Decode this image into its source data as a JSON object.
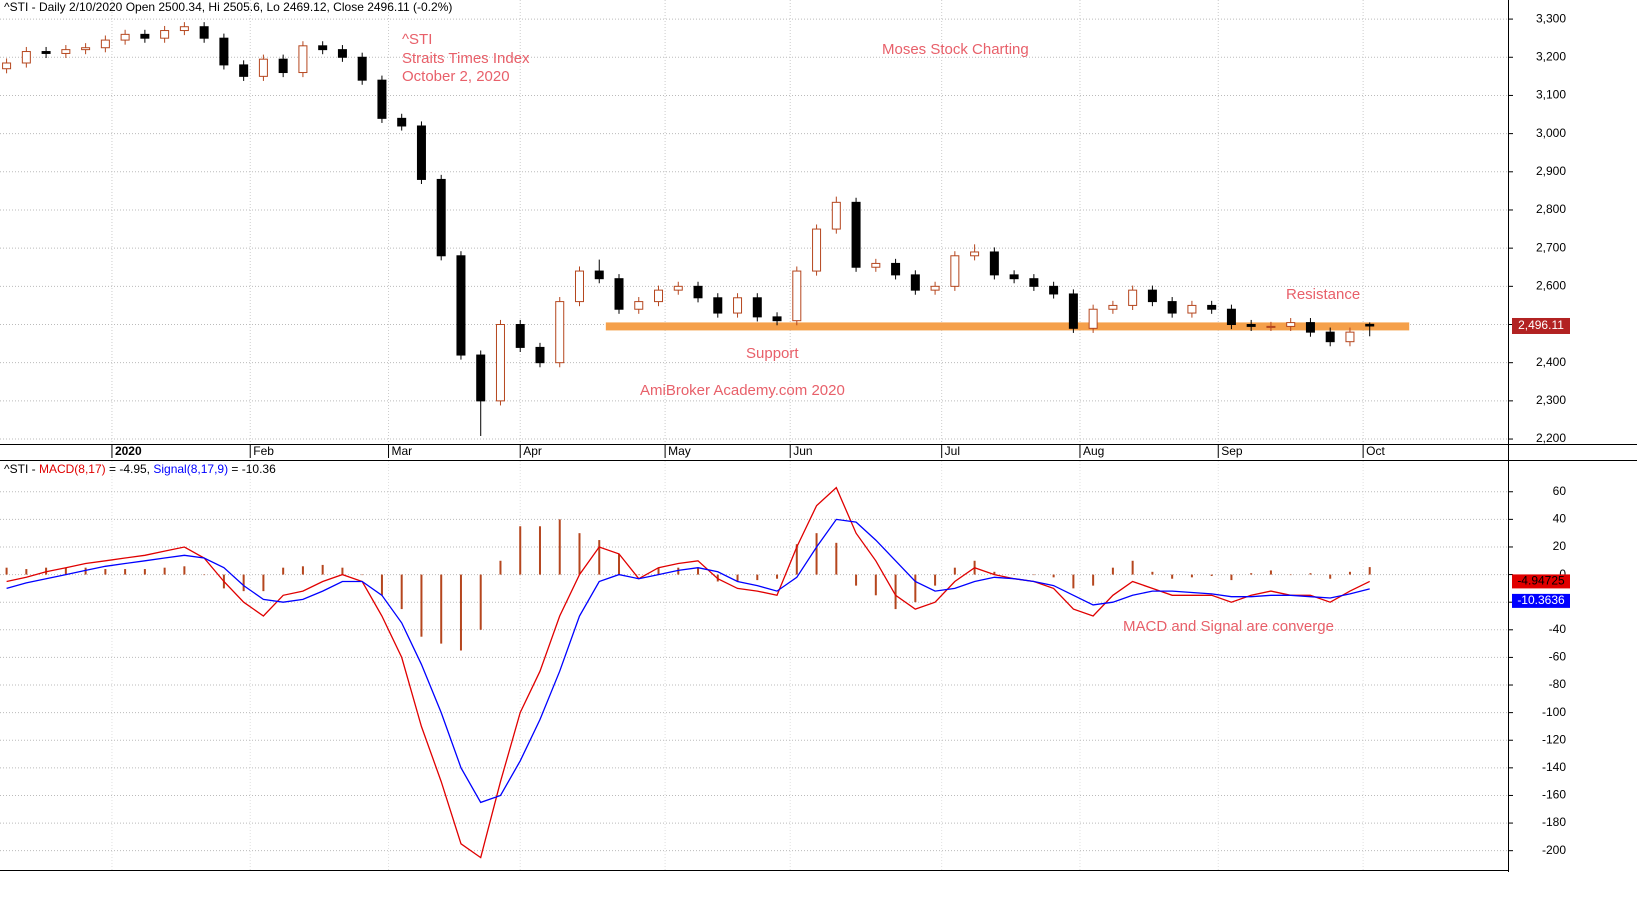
{
  "chart_data": [
    {
      "type": "candlestick",
      "title": "^STI - Daily 2/10/2020 Open 2500.34, Hi 2505.6, Lo 2469.12, Close 2496.11 (-0.2%)",
      "annotations": [
        "^STI",
        "Straits Times Index",
        "October 2, 2020",
        "Moses Stock Charting",
        "Resistance",
        "Support",
        "AmiBroker Academy.com  2020"
      ],
      "x": [
        0,
        3,
        6,
        9,
        12,
        15,
        18,
        21,
        24,
        27,
        30,
        33,
        36,
        39,
        42,
        45,
        48,
        51,
        54,
        57,
        60,
        63,
        66,
        69,
        72,
        75,
        78,
        81,
        84,
        87,
        90,
        93,
        96,
        99,
        102,
        105,
        108,
        111,
        114,
        117,
        120,
        123,
        126,
        129,
        132,
        135,
        138,
        141,
        144,
        147,
        150,
        153,
        156,
        159,
        162,
        165,
        168,
        171,
        174,
        177,
        180,
        183,
        186,
        189,
        192,
        195,
        198,
        201,
        204,
        207
      ],
      "open": [
        3170,
        3185,
        3215,
        3210,
        3220,
        3225,
        3245,
        3260,
        3250,
        3270,
        3280,
        3250,
        3180,
        3150,
        3195,
        3160,
        3230,
        3220,
        3200,
        3140,
        3040,
        3020,
        2880,
        2680,
        2420,
        2300,
        2500,
        2440,
        2400,
        2560,
        2640,
        2620,
        2540,
        2560,
        2590,
        2600,
        2570,
        2530,
        2570,
        2520,
        2510,
        2640,
        2750,
        2820,
        2650,
        2660,
        2630,
        2590,
        2600,
        2680,
        2690,
        2630,
        2620,
        2600,
        2580,
        2490,
        2540,
        2550,
        2590,
        2560,
        2530,
        2550,
        2540,
        2500,
        2495,
        2495,
        2505,
        2480,
        2455,
        2500.34
      ],
      "high": [
        3197,
        3227,
        3227,
        3232,
        3237,
        3257,
        3272,
        3272,
        3282,
        3292,
        3292,
        3262,
        3192,
        3207,
        3207,
        3242,
        3242,
        3232,
        3212,
        3152,
        3052,
        3032,
        2892,
        2692,
        2432,
        2512,
        2512,
        2452,
        2572,
        2652,
        2670,
        2632,
        2572,
        2602,
        2612,
        2612,
        2582,
        2582,
        2582,
        2532,
        2652,
        2762,
        2835,
        2832,
        2672,
        2672,
        2642,
        2612,
        2692,
        2710,
        2702,
        2642,
        2632,
        2612,
        2592,
        2552,
        2562,
        2602,
        2602,
        2572,
        2562,
        2562,
        2552,
        2512,
        2507,
        2517,
        2517,
        2492,
        2492,
        2505.6
      ],
      "low": [
        3158,
        3173,
        3198,
        3198,
        3208,
        3213,
        3233,
        3238,
        3238,
        3258,
        3238,
        3168,
        3138,
        3138,
        3148,
        3148,
        3208,
        3188,
        3128,
        3028,
        3008,
        2868,
        2668,
        2408,
        2208,
        2288,
        2428,
        2388,
        2388,
        2548,
        2608,
        2528,
        2528,
        2548,
        2578,
        2558,
        2518,
        2518,
        2508,
        2498,
        2498,
        2628,
        2738,
        2638,
        2638,
        2618,
        2578,
        2578,
        2588,
        2668,
        2618,
        2608,
        2588,
        2568,
        2478,
        2478,
        2528,
        2538,
        2548,
        2518,
        2518,
        2528,
        2488,
        2483,
        2483,
        2483,
        2468,
        2443,
        2443,
        2469.12
      ],
      "close": [
        3185,
        3215,
        3210,
        3220,
        3225,
        3245,
        3260,
        3250,
        3270,
        3280,
        3250,
        3180,
        3150,
        3195,
        3160,
        3230,
        3220,
        3200,
        3140,
        3040,
        3020,
        2880,
        2680,
        2420,
        2300,
        2500,
        2440,
        2400,
        2560,
        2640,
        2620,
        2540,
        2560,
        2590,
        2600,
        2570,
        2530,
        2570,
        2520,
        2510,
        2640,
        2750,
        2820,
        2650,
        2660,
        2630,
        2590,
        2600,
        2680,
        2690,
        2630,
        2620,
        2600,
        2580,
        2490,
        2540,
        2550,
        2590,
        2560,
        2530,
        2550,
        2540,
        2500,
        2495,
        2495,
        2505,
        2480,
        2455,
        2480,
        2496.11
      ],
      "last_value_label": "2,496.11",
      "up_color": "#b5461e",
      "down_color": "#000000",
      "badge_color": "#b22222",
      "levels": [
        {
          "value": 2495,
          "from": 91,
          "to": 213,
          "color": "#f5a04a"
        }
      ],
      "xlim": [
        -1,
        228
      ],
      "xticks": [
        {
          "value": 16,
          "label": "2020"
        },
        {
          "value": 37,
          "label": "Feb"
        },
        {
          "value": 58,
          "label": "Mar"
        },
        {
          "value": 78,
          "label": "Apr"
        },
        {
          "value": 100,
          "label": "May"
        },
        {
          "value": 119,
          "label": "Jun"
        },
        {
          "value": 142,
          "label": "Jul"
        },
        {
          "value": 163,
          "label": "Aug"
        },
        {
          "value": 184,
          "label": "Sep"
        },
        {
          "value": 206,
          "label": "Oct"
        }
      ],
      "ylim": [
        2187,
        3350
      ],
      "yticks": [
        {
          "value": 2200,
          "label": "2,200"
        },
        {
          "value": 2300,
          "label": "2,300"
        },
        {
          "value": 2400,
          "label": "2,400"
        },
        {
          "value": 2500,
          "label": "2,500"
        },
        {
          "value": 2600,
          "label": "2,600"
        },
        {
          "value": 2700,
          "label": "2,700"
        },
        {
          "value": 2800,
          "label": "2,800"
        },
        {
          "value": 2900,
          "label": "2,900"
        },
        {
          "value": 3000,
          "label": "3,000"
        },
        {
          "value": 3100,
          "label": "3,100"
        },
        {
          "value": 3200,
          "label": "3,200"
        },
        {
          "value": 3300,
          "label": "3,300"
        }
      ],
      "grid": true
    },
    {
      "type": "line",
      "title_parts": [
        "^STI - ",
        " = -4.95, ",
        " = -10.36"
      ],
      "annotations": [
        "MACD and Signal are converge"
      ],
      "x": [
        0,
        3,
        6,
        9,
        12,
        15,
        18,
        21,
        24,
        27,
        30,
        33,
        36,
        39,
        42,
        45,
        48,
        51,
        54,
        57,
        60,
        63,
        66,
        69,
        72,
        75,
        78,
        81,
        84,
        87,
        90,
        93,
        96,
        99,
        102,
        105,
        108,
        111,
        114,
        117,
        120,
        123,
        126,
        129,
        132,
        135,
        138,
        141,
        144,
        147,
        150,
        153,
        156,
        159,
        162,
        165,
        168,
        171,
        174,
        177,
        180,
        183,
        186,
        189,
        192,
        195,
        198,
        201,
        204,
        207
      ],
      "series": [
        {
          "name": "MACD(8,17)",
          "color": "#e00000",
          "last_value_label": "-4.94725",
          "values": [
            -5,
            -2,
            2,
            5,
            8,
            10,
            12,
            14,
            17,
            20,
            12,
            -5,
            -20,
            -30,
            -15,
            -12,
            -5,
            0,
            -5,
            -30,
            -60,
            -110,
            -150,
            -195,
            -205,
            -150,
            -100,
            -70,
            -30,
            0,
            20,
            15,
            -3,
            5,
            8,
            10,
            -3,
            -10,
            -12,
            -15,
            20,
            50,
            63,
            30,
            10,
            -15,
            -25,
            -20,
            -5,
            5,
            0,
            -3,
            -5,
            -10,
            -25,
            -30,
            -15,
            -5,
            -10,
            -15,
            -15,
            -15,
            -20,
            -15,
            -12,
            -15,
            -15,
            -20,
            -12,
            -4.94725
          ]
        },
        {
          "name": "Signal(8,17,9)",
          "color": "#0000ff",
          "last_value_label": "-10.3636",
          "values": [
            -10,
            -6,
            -3,
            0,
            3,
            6,
            8,
            10,
            12,
            14,
            12,
            5,
            -8,
            -18,
            -20,
            -18,
            -12,
            -5,
            -5,
            -15,
            -35,
            -65,
            -100,
            -140,
            -165,
            -160,
            -135,
            -105,
            -70,
            -30,
            -5,
            0,
            -3,
            0,
            3,
            5,
            2,
            -5,
            -8,
            -12,
            -2,
            20,
            40,
            38,
            25,
            10,
            -5,
            -12,
            -10,
            -5,
            -2,
            -3,
            -5,
            -8,
            -15,
            -22,
            -20,
            -15,
            -12,
            -12,
            -13,
            -14,
            -16,
            -16,
            -15,
            -15,
            -16,
            -17,
            -14,
            -10.3636
          ]
        },
        {
          "kind": "bar",
          "color": "#b5461e",
          "values": [
            5,
            4,
            5,
            5,
            5,
            4,
            4,
            4,
            5,
            6,
            0,
            -10,
            -12,
            -12,
            5,
            6,
            7,
            5,
            0,
            -15,
            -25,
            -45,
            -50,
            -55,
            -40,
            10,
            35,
            35,
            40,
            30,
            25,
            15,
            0,
            5,
            5,
            5,
            -5,
            -5,
            -4,
            -3,
            22,
            30,
            23,
            -8,
            -15,
            -25,
            -20,
            -8,
            5,
            10,
            2,
            0,
            0,
            -2,
            -10,
            -8,
            5,
            10,
            2,
            -3,
            -2,
            -1,
            -4,
            1,
            3,
            0,
            1,
            -3,
            2,
            5.42
          ]
        }
      ],
      "xlim": [
        -1,
        228
      ],
      "ylim": [
        -214,
        83
      ],
      "yticks": [
        60,
        40,
        20,
        0,
        -20,
        -40,
        -60,
        -80,
        -100,
        -120,
        -140,
        -160,
        -180,
        -200
      ],
      "grid": true
    }
  ]
}
